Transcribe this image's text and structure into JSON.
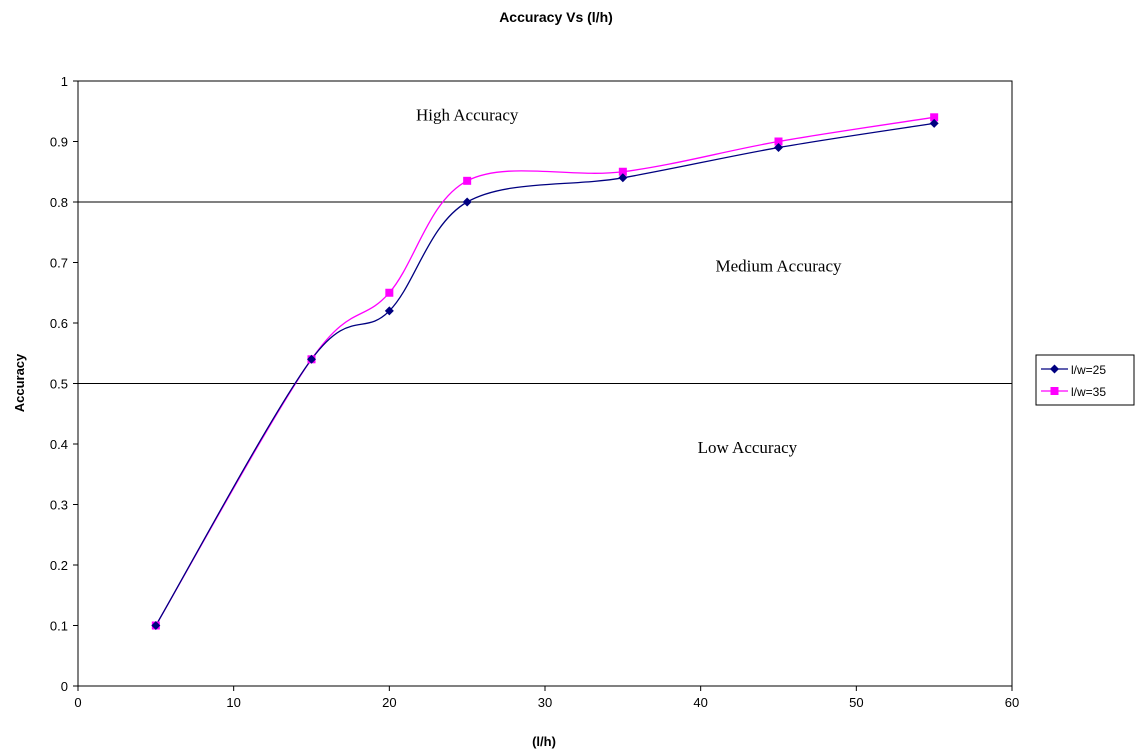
{
  "chart_data": {
    "type": "line",
    "title": "Accuracy Vs (l/h)",
    "xlabel": "(l/h)",
    "ylabel": "Accuracy",
    "xlim": [
      0,
      60
    ],
    "ylim": [
      0,
      1
    ],
    "x_ticks": [
      "0",
      "10",
      "20",
      "30",
      "40",
      "50",
      "60"
    ],
    "y_ticks": [
      "0",
      "0.1",
      "0.2",
      "0.3",
      "0.4",
      "0.5",
      "0.6",
      "0.7",
      "0.8",
      "0.9",
      "1"
    ],
    "grid": false,
    "legend_position": "right",
    "reference_lines": [
      0.5,
      0.8
    ],
    "annotations": [
      {
        "text": "High Accuracy",
        "x": 25,
        "y": 0.935
      },
      {
        "text": "Medium Accuracy",
        "x": 45,
        "y": 0.685
      },
      {
        "text": "Low Accuracy",
        "x": 43,
        "y": 0.385
      }
    ],
    "series": [
      {
        "name": "l/w=25",
        "color": "#000080",
        "marker": "diamond",
        "x": [
          5,
          15,
          20,
          25,
          35,
          45,
          55
        ],
        "y": [
          0.1,
          0.54,
          0.62,
          0.8,
          0.84,
          0.89,
          0.93
        ]
      },
      {
        "name": "l/w=35",
        "color": "#ff00ff",
        "marker": "square",
        "x": [
          5,
          15,
          20,
          25,
          35,
          45,
          55
        ],
        "y": [
          0.1,
          0.54,
          0.65,
          0.835,
          0.85,
          0.9,
          0.94
        ]
      }
    ]
  }
}
